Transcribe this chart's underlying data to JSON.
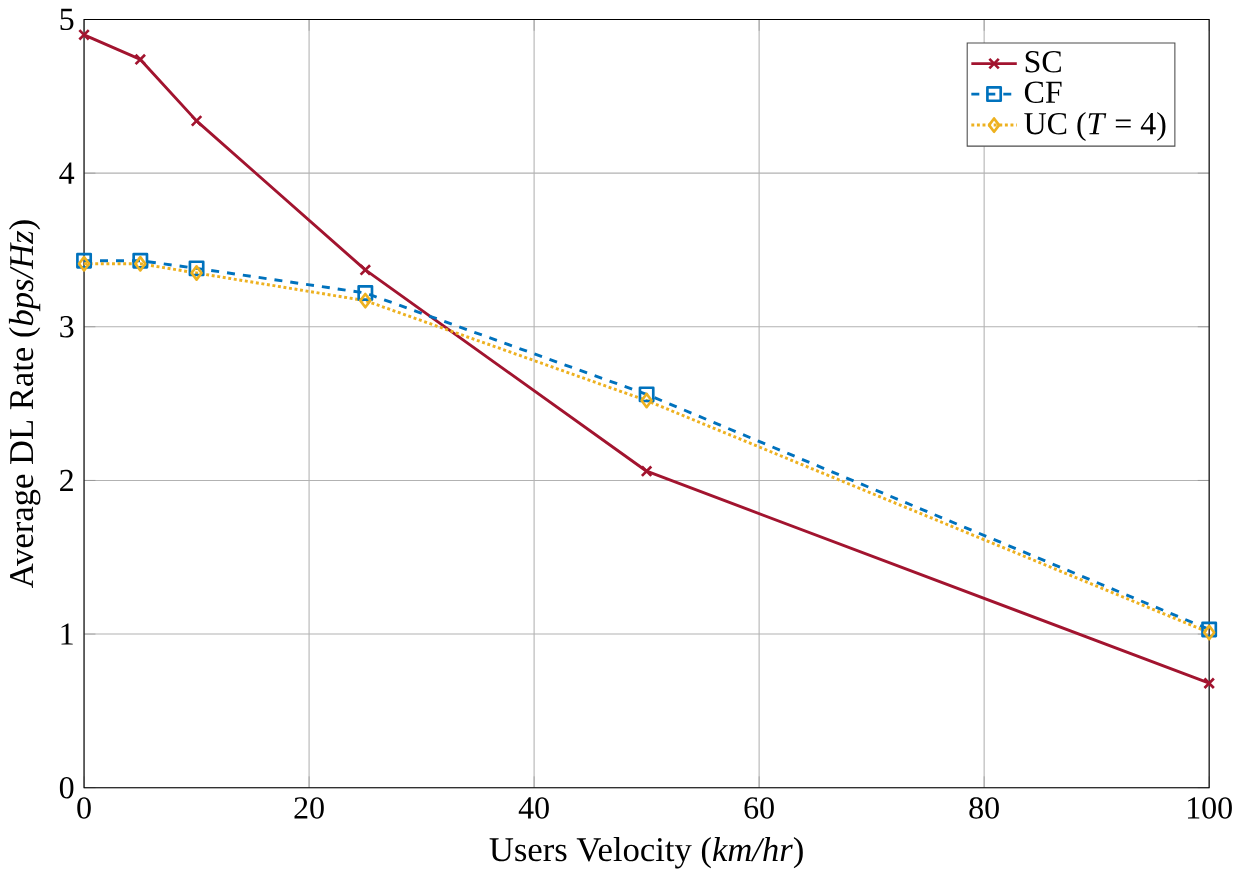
{
  "chart_data": {
    "type": "line",
    "xlabel": "Users Velocity (*km/hr*)",
    "ylabel": "Average DL Rate (*bps/Hz*)",
    "x": [
      0,
      5,
      10,
      25,
      50,
      100
    ],
    "series": [
      {
        "name": "SC",
        "color": "#a2142f",
        "marker": "cross",
        "line_style": "solid",
        "values": [
          4.9,
          4.74,
          4.34,
          3.37,
          2.06,
          0.68
        ]
      },
      {
        "name": "CF",
        "color": "#0072bd",
        "marker": "square",
        "line_style": "dashed",
        "values": [
          3.43,
          3.43,
          3.38,
          3.22,
          2.56,
          1.03
        ]
      },
      {
        "name": "UC (*T* = 4)",
        "color": "#edb120",
        "marker": "diamond",
        "line_style": "dotted",
        "values": [
          3.41,
          3.41,
          3.35,
          3.17,
          2.52,
          1.01
        ]
      }
    ],
    "xlim": [
      0,
      100
    ],
    "ylim": [
      0,
      5
    ],
    "xticks": [
      0,
      20,
      40,
      60,
      80,
      100
    ],
    "yticks": [
      0,
      1,
      2,
      3,
      4,
      5
    ],
    "grid": true,
    "legend": "top right"
  }
}
